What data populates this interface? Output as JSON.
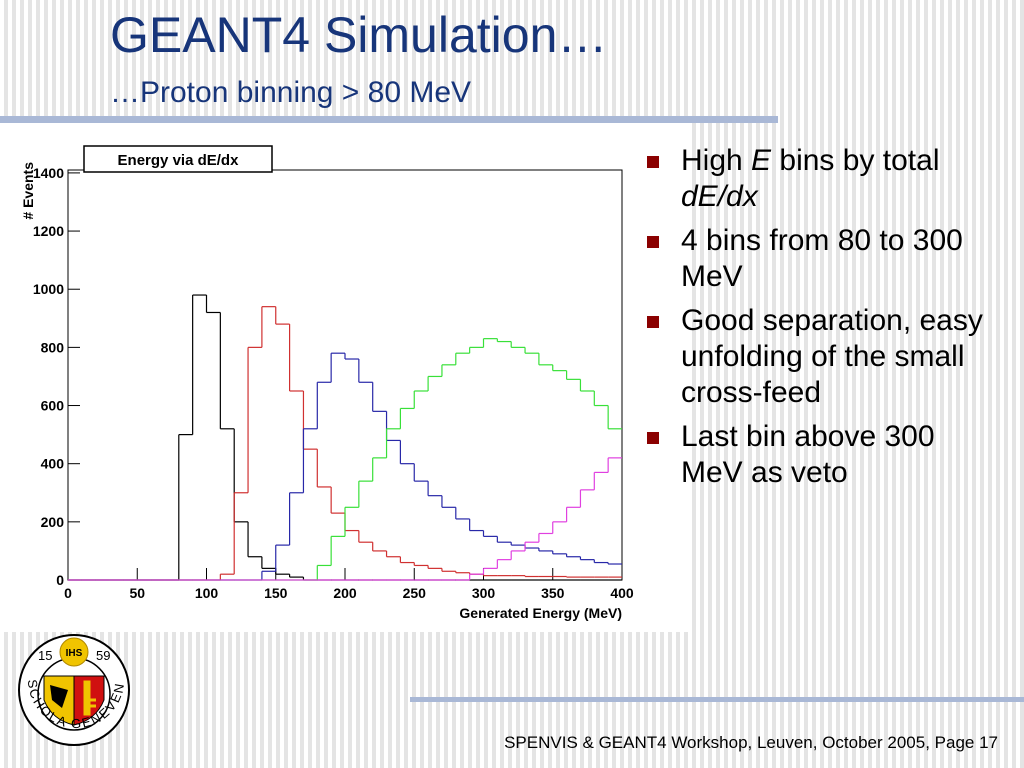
{
  "slide": {
    "title": "GEANT4 Simulation…",
    "subtitle": "…Proton binning > 80 MeV",
    "bullets": [
      [
        {
          "text": "High "
        },
        {
          "text": "E",
          "italic": true
        },
        {
          "text": " bins by total "
        },
        {
          "text": "dE/dx",
          "italic": true
        }
      ],
      [
        {
          "text": "4 bins from 80 to 300 MeV"
        }
      ],
      [
        {
          "text": "Good separation, easy unfolding of the small cross-feed"
        }
      ],
      [
        {
          "text": "Last bin above 300 MeV as veto"
        }
      ]
    ],
    "footer": "SPENVIS & GEANT4 Workshop, Leuven, October 2005, Page 17",
    "logo": {
      "motto": "SCHOLA GENEVENSIS",
      "years": [
        "15",
        "59"
      ],
      "monogram": "IHS"
    }
  },
  "chart_data": {
    "type": "histogram",
    "title": "Energy via dE/dx",
    "xlabel": "Generated Energy (MeV)",
    "ylabel": "# Events",
    "bins": [
      0,
      10,
      20,
      30,
      40,
      50,
      60,
      70,
      80,
      90,
      100,
      110,
      120,
      130,
      140,
      150,
      160,
      170,
      180,
      190,
      200,
      210,
      220,
      230,
      240,
      250,
      260,
      270,
      280,
      290,
      300,
      310,
      320,
      330,
      340,
      350,
      360,
      370,
      380,
      390,
      400
    ],
    "series": [
      {
        "color": "#000000",
        "values": [
          0,
          0,
          0,
          0,
          0,
          0,
          0,
          0,
          500,
          980,
          920,
          520,
          200,
          80,
          40,
          20,
          10,
          0,
          0,
          0,
          0,
          0,
          0,
          0,
          0,
          0,
          0,
          0,
          0,
          0,
          0,
          0,
          0,
          0,
          0,
          0,
          0,
          0,
          0,
          0
        ]
      },
      {
        "color": "#d03030",
        "values": [
          0,
          0,
          0,
          0,
          0,
          0,
          0,
          0,
          0,
          0,
          0,
          20,
          300,
          800,
          940,
          880,
          650,
          450,
          320,
          230,
          170,
          130,
          100,
          80,
          60,
          50,
          40,
          30,
          25,
          20,
          15,
          15,
          15,
          12,
          12,
          12,
          10,
          10,
          10,
          10
        ]
      },
      {
        "color": "#2828a8",
        "values": [
          0,
          0,
          0,
          0,
          0,
          0,
          0,
          0,
          0,
          0,
          0,
          0,
          0,
          0,
          30,
          120,
          300,
          520,
          680,
          780,
          760,
          680,
          580,
          480,
          400,
          340,
          290,
          250,
          210,
          170,
          150,
          130,
          120,
          110,
          100,
          90,
          80,
          70,
          60,
          55
        ]
      },
      {
        "color": "#38e038",
        "values": [
          0,
          0,
          0,
          0,
          0,
          0,
          0,
          0,
          0,
          0,
          0,
          0,
          0,
          0,
          0,
          0,
          0,
          0,
          50,
          150,
          250,
          340,
          420,
          520,
          590,
          650,
          700,
          740,
          780,
          800,
          830,
          820,
          800,
          780,
          740,
          720,
          690,
          650,
          600,
          520
        ]
      },
      {
        "color": "#e040e0",
        "values": [
          0,
          0,
          0,
          0,
          0,
          0,
          0,
          0,
          0,
          0,
          0,
          0,
          0,
          0,
          0,
          0,
          0,
          0,
          0,
          0,
          0,
          0,
          0,
          0,
          0,
          0,
          0,
          0,
          0,
          20,
          40,
          70,
          100,
          130,
          160,
          200,
          250,
          310,
          370,
          420
        ]
      }
    ],
    "xlim": [
      0,
      400
    ],
    "xticks": [
      0,
      50,
      100,
      150,
      200,
      250,
      300,
      350,
      400
    ],
    "ylim": [
      0,
      1410
    ],
    "yticks": [
      0,
      200,
      400,
      600,
      800,
      1000,
      1200,
      1400
    ]
  }
}
